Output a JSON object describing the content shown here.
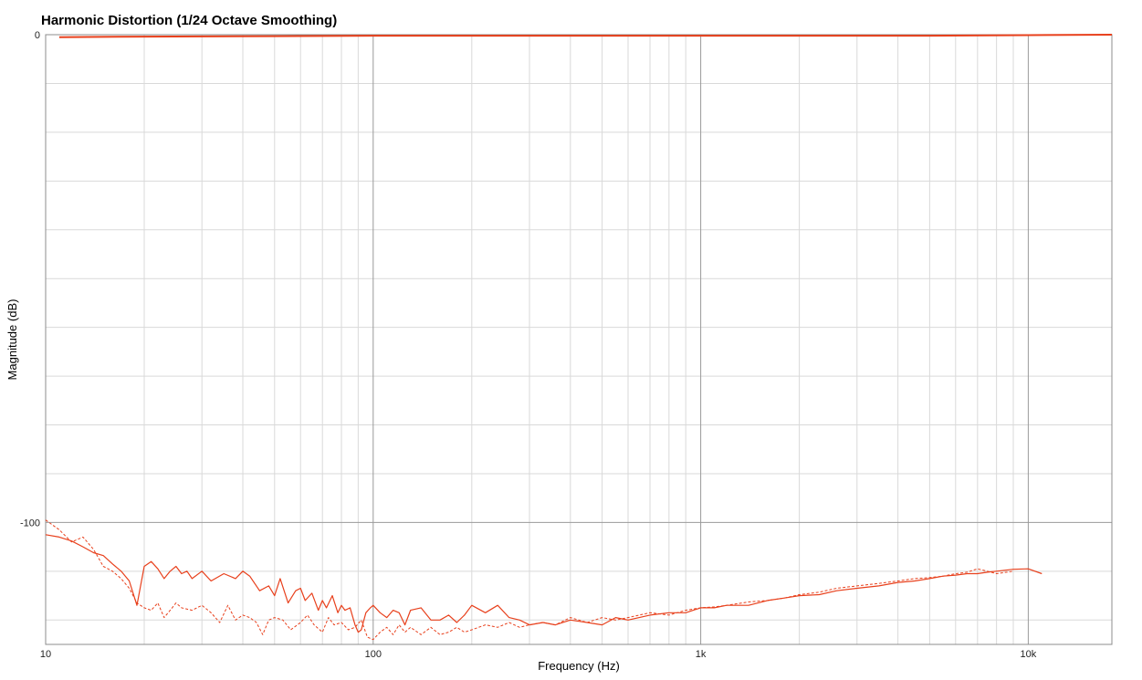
{
  "chart_data": {
    "type": "line",
    "title": "Harmonic Distortion (1/24 Octave Smoothing)",
    "xlabel": "Frequency (Hz)",
    "ylabel": "Magnitude (dB)",
    "x_scale": "log",
    "xlim": [
      10,
      18000
    ],
    "ylim": [
      -125,
      0
    ],
    "x_ticks": [
      {
        "value": 10,
        "label": "10"
      },
      {
        "value": 100,
        "label": "100"
      },
      {
        "value": 1000,
        "label": "1k"
      },
      {
        "value": 10000,
        "label": "10k"
      }
    ],
    "y_ticks": [
      {
        "value": 0,
        "label": "0"
      },
      {
        "value": -100,
        "label": "-100"
      }
    ],
    "grid": true,
    "legend": "none",
    "colors": {
      "line": "#e8401c",
      "major_grid": "#9a9a9a",
      "minor_grid": "#d9d9d9",
      "border": "#8c8c8c"
    },
    "series": [
      {
        "style": "solid-thick",
        "x": [
          11,
          20,
          50,
          100,
          200,
          500,
          1000,
          2000,
          5000,
          10000,
          18000
        ],
        "y": [
          -0.5,
          -0.4,
          -0.3,
          -0.2,
          -0.2,
          -0.2,
          -0.2,
          -0.2,
          -0.2,
          -0.1,
          0
        ]
      },
      {
        "style": "solid",
        "x": [
          10,
          11,
          12,
          13,
          14,
          15,
          16,
          17,
          18,
          19,
          20,
          21,
          22,
          23,
          24,
          25,
          26,
          27,
          28,
          30,
          32,
          35,
          38,
          40,
          42,
          45,
          48,
          50,
          52,
          55,
          58,
          60,
          62,
          65,
          68,
          70,
          72,
          75,
          78,
          80,
          82,
          85,
          88,
          90,
          92,
          95,
          98,
          100,
          105,
          110,
          115,
          120,
          125,
          130,
          140,
          150,
          160,
          170,
          180,
          190,
          200,
          220,
          240,
          260,
          280,
          300,
          330,
          360,
          400,
          450,
          500,
          550,
          600,
          700,
          800,
          900,
          1000,
          1100,
          1200,
          1400,
          1600,
          1800,
          2000,
          2300,
          2600,
          3000,
          3500,
          4000,
          4500,
          5000,
          5500,
          6000,
          6500,
          7000,
          7500,
          8000,
          9000,
          10000,
          11000
        ],
        "y": [
          -102.5,
          -103,
          -103.8,
          -105,
          -106.2,
          -106.8,
          -108.5,
          -110,
          -112,
          -117,
          -109,
          -108,
          -109.5,
          -111.5,
          -110,
          -109,
          -110.5,
          -110,
          -111.5,
          -110,
          -112,
          -110.5,
          -111.5,
          -110,
          -111,
          -114,
          -113,
          -115,
          -111.5,
          -116.5,
          -114,
          -113.5,
          -116,
          -114.5,
          -118,
          -116,
          -117.5,
          -115,
          -118.5,
          -117,
          -118,
          -117.5,
          -121,
          -122.5,
          -122,
          -118.5,
          -117.5,
          -117,
          -118.5,
          -119.5,
          -118,
          -118.5,
          -121,
          -118,
          -117.5,
          -120,
          -120,
          -119,
          -120.5,
          -119,
          -117,
          -118.5,
          -117,
          -119.5,
          -120,
          -121,
          -120.5,
          -121,
          -120,
          -120.5,
          -121,
          -119.5,
          -120,
          -119,
          -118.5,
          -118.5,
          -117.5,
          -117.5,
          -117,
          -117,
          -116,
          -115.5,
          -115,
          -114.8,
          -114,
          -113.5,
          -113,
          -112.3,
          -112,
          -111.5,
          -111,
          -110.8,
          -110.5,
          -110.5,
          -110.2,
          -110,
          -109.6,
          -109.5,
          -110.5
        ]
      },
      {
        "style": "dashed",
        "x": [
          10,
          11,
          12,
          13,
          14,
          15,
          16,
          17,
          18,
          19,
          20,
          21,
          22,
          23,
          24,
          25,
          26,
          28,
          30,
          32,
          34,
          36,
          38,
          40,
          42,
          44,
          46,
          48,
          50,
          53,
          56,
          60,
          63,
          66,
          70,
          73,
          76,
          80,
          84,
          88,
          92,
          96,
          100,
          105,
          110,
          115,
          120,
          125,
          130,
          140,
          150,
          160,
          170,
          180,
          190,
          200,
          220,
          240,
          260,
          280,
          300,
          330,
          360,
          400,
          450,
          500,
          550,
          600,
          700,
          800,
          900,
          1000,
          1100,
          1200,
          1400,
          1600,
          1800,
          2000,
          2300,
          2600,
          3000,
          3500,
          4000,
          4500,
          5000,
          5500,
          6000,
          6500,
          7000,
          7500,
          8000,
          9000
        ],
        "y": [
          -99.5,
          -101.5,
          -104,
          -103,
          -105.5,
          -109,
          -110,
          -111.5,
          -113.5,
          -116.5,
          -117.5,
          -118,
          -116.5,
          -119.5,
          -118,
          -116.5,
          -117.5,
          -118,
          -117,
          -118.5,
          -120.5,
          -117,
          -120,
          -119,
          -119.5,
          -120.5,
          -123,
          -120,
          -119.5,
          -120,
          -122,
          -120.5,
          -119,
          -121,
          -122.5,
          -119.5,
          -121,
          -120.5,
          -122,
          -121.5,
          -120,
          -123.5,
          -124,
          -122.5,
          -121.5,
          -123,
          -121,
          -122.5,
          -121.5,
          -123,
          -121.5,
          -123,
          -122.5,
          -121.5,
          -122.5,
          -122,
          -121,
          -121.5,
          -120.5,
          -121.5,
          -121,
          -120.5,
          -121,
          -119.5,
          -120.5,
          -119.5,
          -120,
          -119.5,
          -118.5,
          -119,
          -118,
          -117.5,
          -117.3,
          -117,
          -116.3,
          -116,
          -115.5,
          -114.8,
          -114.3,
          -113.5,
          -113,
          -112.5,
          -112,
          -111.5,
          -111.3,
          -111,
          -110.5,
          -110.2,
          -109.5,
          -110,
          -110.5,
          -110
        ]
      }
    ]
  }
}
